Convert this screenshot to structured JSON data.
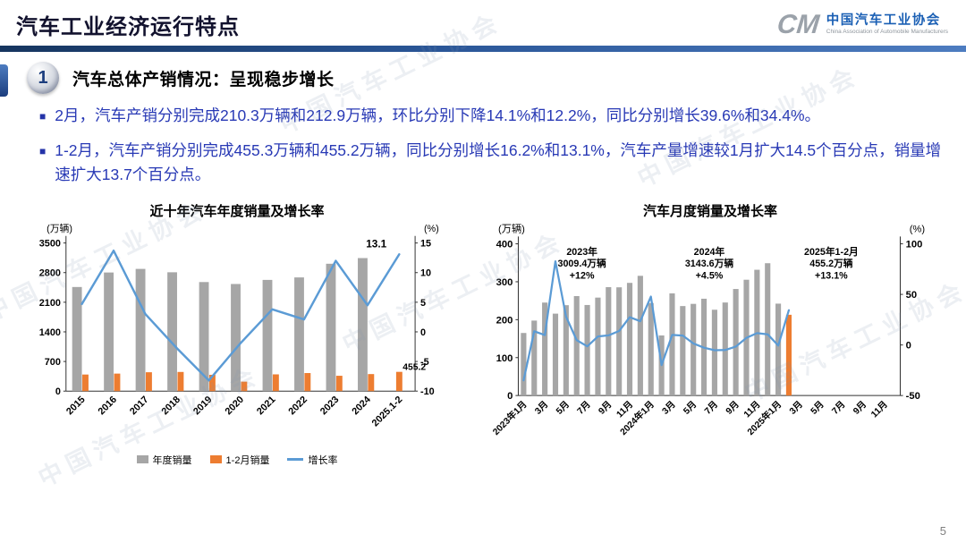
{
  "page": {
    "title": "汽车工业经济运行特点",
    "page_number": "5"
  },
  "logo": {
    "monogram": "CM",
    "org_cn": "中国汽车工业协会",
    "org_en": "China Association of Automobile Manufacturers"
  },
  "section": {
    "number": "1",
    "title": "汽车总体产销情况：",
    "subtitle": "呈现稳步增长"
  },
  "ui": {
    "bullet_marker": "■"
  },
  "bullets": [
    "2月，汽车产销分别完成210.3万辆和212.9万辆，环比分别下降14.1%和12.2%，同比分别增长39.6%和34.4%。",
    "1-2月，汽车产销分别完成455.3万辆和455.2万辆，同比分别增长16.2%和13.1%，汽车产量增速较1月扩大14.5个百分点，销量增速扩大13.7个百分点。"
  ],
  "watermark_text": "中国汽车工业协会",
  "colors": {
    "body_blue": "#2839b5",
    "bar_gray": "#a6a6a6",
    "bar_orange": "#ed7d31",
    "line_blue": "#5b9bd5",
    "header_navy": "#1c3e7e"
  },
  "chart_data": [
    {
      "type": "bar",
      "title": "近十年汽车年度销量及增长率",
      "unit_left": "(万辆)",
      "unit_right": "(%)",
      "categories": [
        "2015",
        "2016",
        "2017",
        "2018",
        "2019",
        "2020",
        "2021",
        "2022",
        "2023",
        "2024",
        "2025.1-2"
      ],
      "series": [
        {
          "name": "年度销量",
          "kind": "bar",
          "color": "#a6a6a6",
          "axis": "left",
          "values": [
            2459.8,
            2802.8,
            2887.9,
            2808.1,
            2576.9,
            2531.1,
            2627.5,
            2686.4,
            3009.4,
            3143.6,
            null
          ]
        },
        {
          "name": "1-2月销量",
          "kind": "bar",
          "color": "#ed7d31",
          "axis": "left",
          "values": [
            391.8,
            413.9,
            445.9,
            452.7,
            385.2,
            223.8,
            395.8,
            426.8,
            362.5,
            402.6,
            455.2
          ]
        },
        {
          "name": "增长率",
          "kind": "line",
          "color": "#5b9bd5",
          "axis": "right",
          "values": [
            4.7,
            13.7,
            3.0,
            -2.8,
            -8.2,
            -1.9,
            3.8,
            2.1,
            12.0,
            4.5,
            13.1
          ]
        }
      ],
      "left_axis": {
        "min": 0,
        "max": 3500,
        "ticks": [
          0,
          700,
          1400,
          2100,
          2800,
          3500
        ]
      },
      "right_axis": {
        "min": -10,
        "max": 15,
        "ticks": [
          -10,
          -5,
          0,
          5,
          10,
          15
        ]
      },
      "labels": {
        "last_line_value": "13.1",
        "last_bar_value": "455.2"
      },
      "legend_position": "bottom",
      "grid": false
    },
    {
      "type": "bar",
      "title": "汽车月度销量及增长率",
      "unit_left": "(万辆)",
      "unit_right": "(%)",
      "x_slots": 36,
      "x_tick_labels": [
        "2023年1月",
        "3月",
        "5月",
        "7月",
        "9月",
        "11月",
        "2024年1月",
        "3月",
        "5月",
        "7月",
        "9月",
        "11月",
        "2025年1月",
        "3月",
        "5月",
        "7月",
        "9月",
        "11月"
      ],
      "bars": {
        "color_default": "#a6a6a6",
        "color_last": "#ed7d31",
        "values": [
          164.9,
          197.6,
          245.1,
          215.9,
          238.2,
          262.2,
          238.7,
          258.2,
          285.8,
          285.3,
          297.0,
          315.6,
          243.9,
          158.4,
          269.4,
          235.9,
          241.7,
          255.2,
          226.2,
          245.3,
          280.9,
          305.3,
          331.6,
          348.9,
          242.3,
          212.9
        ]
      },
      "line": {
        "name": "增长率",
        "color": "#5b9bd5",
        "values": [
          -35.0,
          13.5,
          9.7,
          82.7,
          27.9,
          4.8,
          -1.4,
          8.4,
          9.5,
          13.8,
          27.4,
          23.5,
          47.9,
          -19.9,
          9.9,
          9.3,
          1.5,
          -2.7,
          -5.2,
          -5.0,
          -1.7,
          7.0,
          11.7,
          10.5,
          -0.6,
          34.4
        ]
      },
      "left_axis": {
        "min": 0,
        "max": 400,
        "ticks": [
          0,
          100,
          200,
          300,
          400
        ]
      },
      "right_axis": {
        "min": -50,
        "max": 100,
        "ticks": [
          -50,
          0,
          50,
          100
        ]
      },
      "annotations": [
        {
          "lines": [
            "2023年",
            "3009.4万辆",
            "+12%"
          ]
        },
        {
          "lines": [
            "2024年",
            "3143.6万辆",
            "+4.5%"
          ]
        },
        {
          "lines": [
            "2025年1-2月",
            "455.2万辆",
            "+13.1%"
          ]
        }
      ],
      "grid": false
    }
  ]
}
